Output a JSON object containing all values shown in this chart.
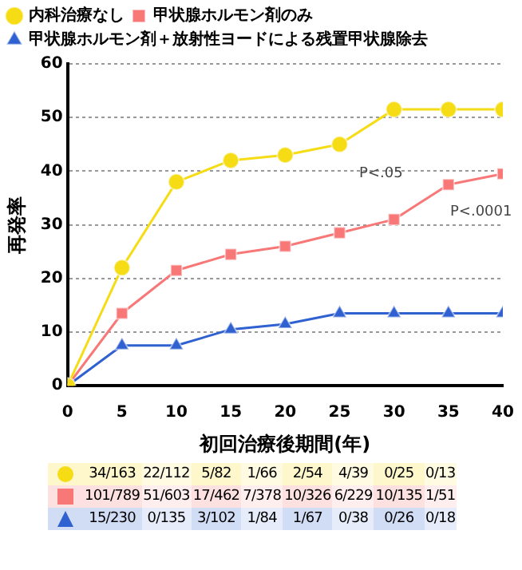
{
  "chart_data": {
    "type": "line",
    "xlabel": "初回治療後期間(年)",
    "ylabel": "再発率",
    "x": [
      0,
      5,
      10,
      15,
      20,
      25,
      30,
      35,
      40
    ],
    "series": [
      {
        "name": "内科治療なし",
        "color": "#f5dc14",
        "marker": "circle",
        "values": [
          0,
          22,
          38,
          42,
          43,
          45,
          51.5,
          51.5,
          51.5
        ]
      },
      {
        "name": "甲状腺ホルモン剤のみ",
        "color": "#f87878",
        "marker": "square",
        "values": [
          0,
          13.5,
          21.5,
          24.5,
          26,
          28.5,
          31,
          37.5,
          39.5
        ]
      },
      {
        "name": "甲状腺ホルモン剤＋放射性ヨードによる残置甲状腺除去",
        "color": "#2f62d0",
        "marker": "triangle",
        "values": [
          0,
          7.5,
          7.5,
          10.5,
          11.5,
          13.5,
          13.5,
          13.5,
          13.5
        ]
      }
    ],
    "xlim": [
      0,
      40
    ],
    "xticks": [
      0,
      5,
      10,
      15,
      20,
      25,
      30,
      35,
      40
    ],
    "ylim": [
      0,
      60
    ],
    "yticks": [
      0,
      10,
      20,
      30,
      40,
      50,
      60
    ],
    "grid": "y",
    "legend": "top left",
    "line_style": "solid",
    "annotations": [
      "P<.05",
      "P<.0001",
      "34/163",
      "22/112",
      "5/82",
      "1/66",
      "2/54",
      "4/39",
      "0/25",
      "0/13",
      "101/789",
      "51/603",
      "17/462",
      "7/378",
      "10/326",
      "6/229",
      "10/135",
      "1/51",
      "15/230",
      "0/135",
      "3/102",
      "1/84",
      "1/67",
      "0/38",
      "0/26",
      "0/18"
    ]
  }
}
